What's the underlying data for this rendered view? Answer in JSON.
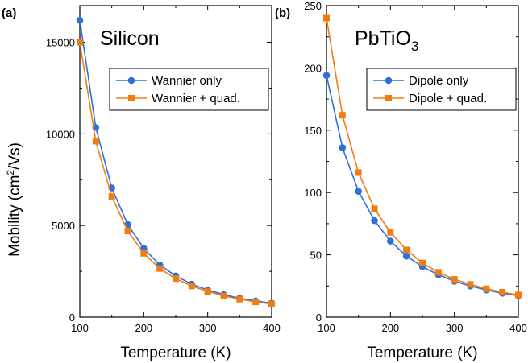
{
  "figure": {
    "ylabel_main": "Mobility (cm",
    "ylabel_sup": "2",
    "ylabel_end": "/Vs)"
  },
  "chart_data": [
    {
      "type": "line",
      "panel_label": "(a)",
      "title": "Silicon",
      "xlabel": "Temperature (K)",
      "ylabel": "Mobility (cm2/Vs)",
      "xlim": [
        100,
        400
      ],
      "ylim": [
        0,
        17000
      ],
      "xticks": [
        100,
        200,
        300,
        400
      ],
      "yticks": [
        0,
        5000,
        10000,
        15000
      ],
      "grid": false,
      "legend": "upper-right",
      "x": [
        100,
        125,
        150,
        175,
        200,
        225,
        250,
        275,
        300,
        325,
        350,
        375,
        400
      ],
      "series": [
        {
          "name": "Wannier only",
          "color": "#2f6fdc",
          "marker": "circle",
          "values": [
            16200,
            10350,
            7050,
            5050,
            3750,
            2850,
            2250,
            1800,
            1480,
            1230,
            1030,
            880,
            760
          ]
        },
        {
          "name": "Wannier + quad.",
          "color": "#f07d12",
          "marker": "square",
          "values": [
            15000,
            9600,
            6580,
            4700,
            3480,
            2650,
            2100,
            1700,
            1400,
            1160,
            980,
            830,
            720
          ]
        }
      ]
    },
    {
      "type": "line",
      "panel_label": "(b)",
      "title_main": "PbTiO",
      "title_sub": "3",
      "xlabel": "Temperature (K)",
      "xlim": [
        100,
        400
      ],
      "ylim": [
        0,
        250
      ],
      "xticks": [
        100,
        200,
        300,
        400
      ],
      "yticks": [
        0,
        50,
        100,
        150,
        200,
        250
      ],
      "grid": false,
      "legend": "upper-right",
      "x": [
        100,
        125,
        150,
        175,
        200,
        225,
        250,
        275,
        300,
        325,
        350,
        375,
        400
      ],
      "series": [
        {
          "name": "Dipole only",
          "color": "#2f6fdc",
          "marker": "circle",
          "values": [
            194,
            136,
            101,
            77.5,
            61,
            49,
            40.5,
            34,
            28.8,
            25,
            21.8,
            19.2,
            17.2
          ]
        },
        {
          "name": "Dipole + quad.",
          "color": "#f07d12",
          "marker": "square",
          "values": [
            240,
            162,
            116,
            87,
            68,
            54,
            43.5,
            36,
            30.3,
            26.3,
            22.8,
            20,
            17.8
          ]
        }
      ]
    }
  ]
}
